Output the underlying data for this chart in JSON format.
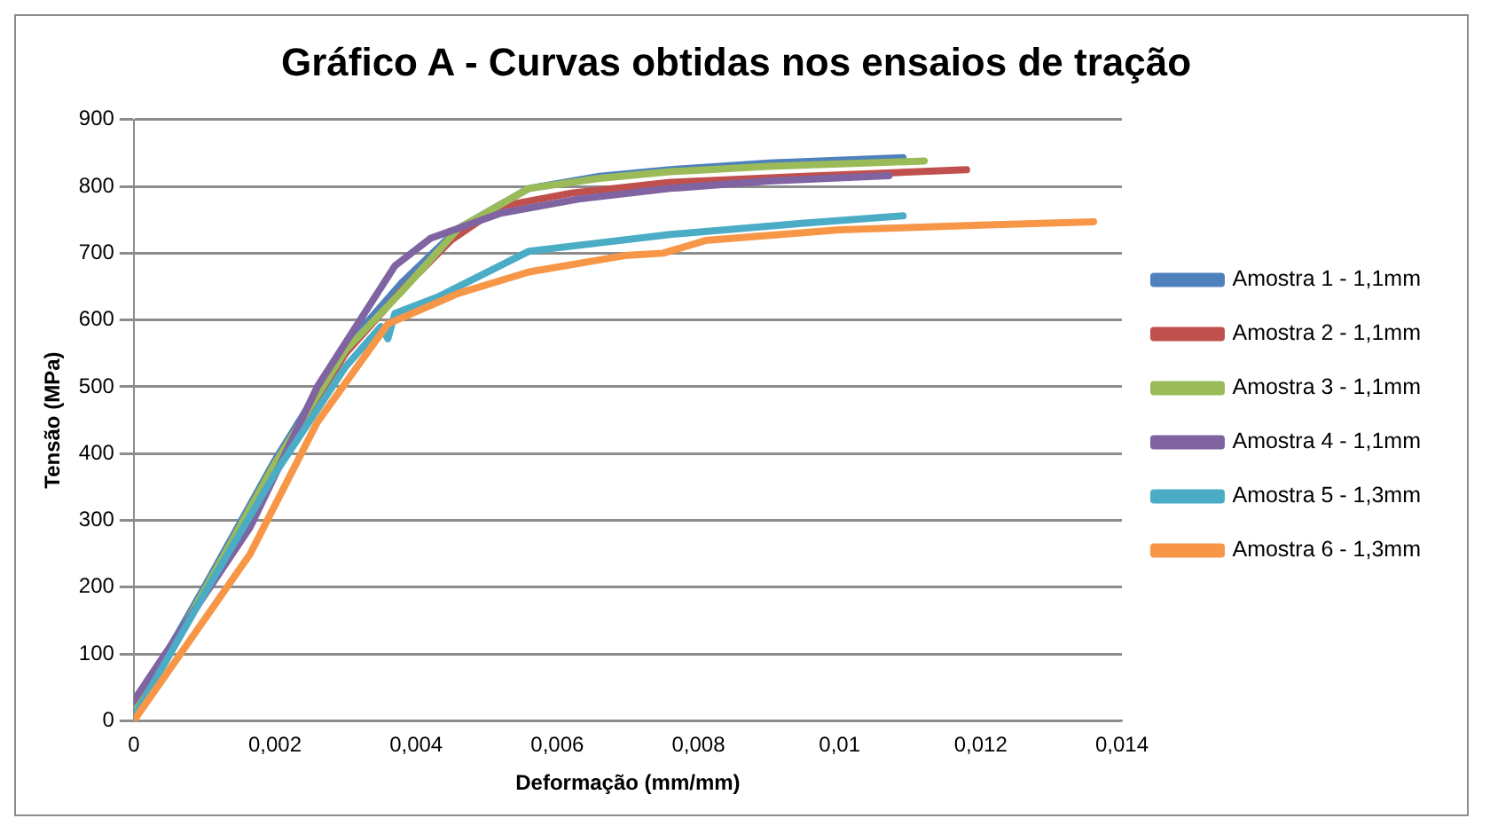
{
  "chart_data": {
    "type": "line",
    "title": "Gráfico A - Curvas obtidas nos ensaios de tração",
    "xlabel": "Deformação (mm/mm)",
    "ylabel": "Tensão (MPa)",
    "xlim": [
      0,
      0.014
    ],
    "xticks": [
      {
        "value": 0,
        "label": "0"
      },
      {
        "value": 0.002,
        "label": "0,002"
      },
      {
        "value": 0.004,
        "label": "0,004"
      },
      {
        "value": 0.006,
        "label": "0,006"
      },
      {
        "value": 0.008,
        "label": "0,008"
      },
      {
        "value": 0.01,
        "label": "0,01"
      },
      {
        "value": 0.012,
        "label": "0,012"
      },
      {
        "value": 0.014,
        "label": "0,014"
      }
    ],
    "ylim": [
      0,
      900
    ],
    "yticks": [
      0,
      100,
      200,
      300,
      400,
      500,
      600,
      700,
      800,
      900
    ],
    "grid": "y",
    "legend": "right",
    "marker": "none",
    "series": [
      {
        "name": "Amostra 1 - 1,1mm",
        "color": "#4f81bd",
        "x": [
          0,
          0.001,
          0.002,
          0.003,
          0.0038,
          0.0046,
          0.0056,
          0.0066,
          0.0076,
          0.009,
          0.0109
        ],
        "values": [
          15,
          200,
          390,
          560,
          656,
          737,
          797,
          815,
          825,
          835,
          843
        ]
      },
      {
        "name": "Amostra 2 - 1,1mm",
        "color": "#c0504d",
        "x": [
          0,
          0.001,
          0.002,
          0.003,
          0.0038,
          0.0045,
          0.0052,
          0.0062,
          0.0076,
          0.0095,
          0.0118
        ],
        "values": [
          10,
          190,
          380,
          550,
          645,
          720,
          770,
          790,
          806,
          815,
          825
        ]
      },
      {
        "name": "Amostra 3 - 1,1mm",
        "color": "#9bbb59",
        "x": [
          0,
          0.001,
          0.002,
          0.003,
          0.0038,
          0.0046,
          0.0056,
          0.0066,
          0.0076,
          0.009,
          0.0112
        ],
        "values": [
          10,
          195,
          385,
          555,
          643,
          737,
          797,
          812,
          822,
          830,
          838
        ]
      },
      {
        "name": "Amostra 4 - 1,1mm",
        "color": "#8064a2",
        "x": [
          0,
          0.00165,
          0.0026,
          0.0037,
          0.0042,
          0.0052,
          0.0063,
          0.0076,
          0.009,
          0.0107
        ],
        "values": [
          30,
          290,
          500,
          681,
          722,
          760,
          781,
          797,
          808,
          816
        ]
      },
      {
        "name": "Amostra 5 - 1,3mm",
        "color": "#4bacc6",
        "x": [
          0,
          0.001,
          0.002,
          0.003,
          0.0035,
          0.0036,
          0.0037,
          0.0043,
          0.0056,
          0.0076,
          0.0095,
          0.0109
        ],
        "values": [
          5,
          190,
          370,
          530,
          590,
          572,
          610,
          634,
          703,
          728,
          745,
          756
        ]
      },
      {
        "name": "Amostra 6 - 1,3mm",
        "color": "#f79646",
        "x": [
          0,
          0.00165,
          0.0026,
          0.0036,
          0.0046,
          0.0056,
          0.0066,
          0.007,
          0.0075,
          0.0081,
          0.01,
          0.012,
          0.0136
        ],
        "values": [
          0,
          250,
          447,
          594,
          640,
          672,
          690,
          697,
          700,
          719,
          735,
          742,
          747
        ]
      }
    ]
  }
}
